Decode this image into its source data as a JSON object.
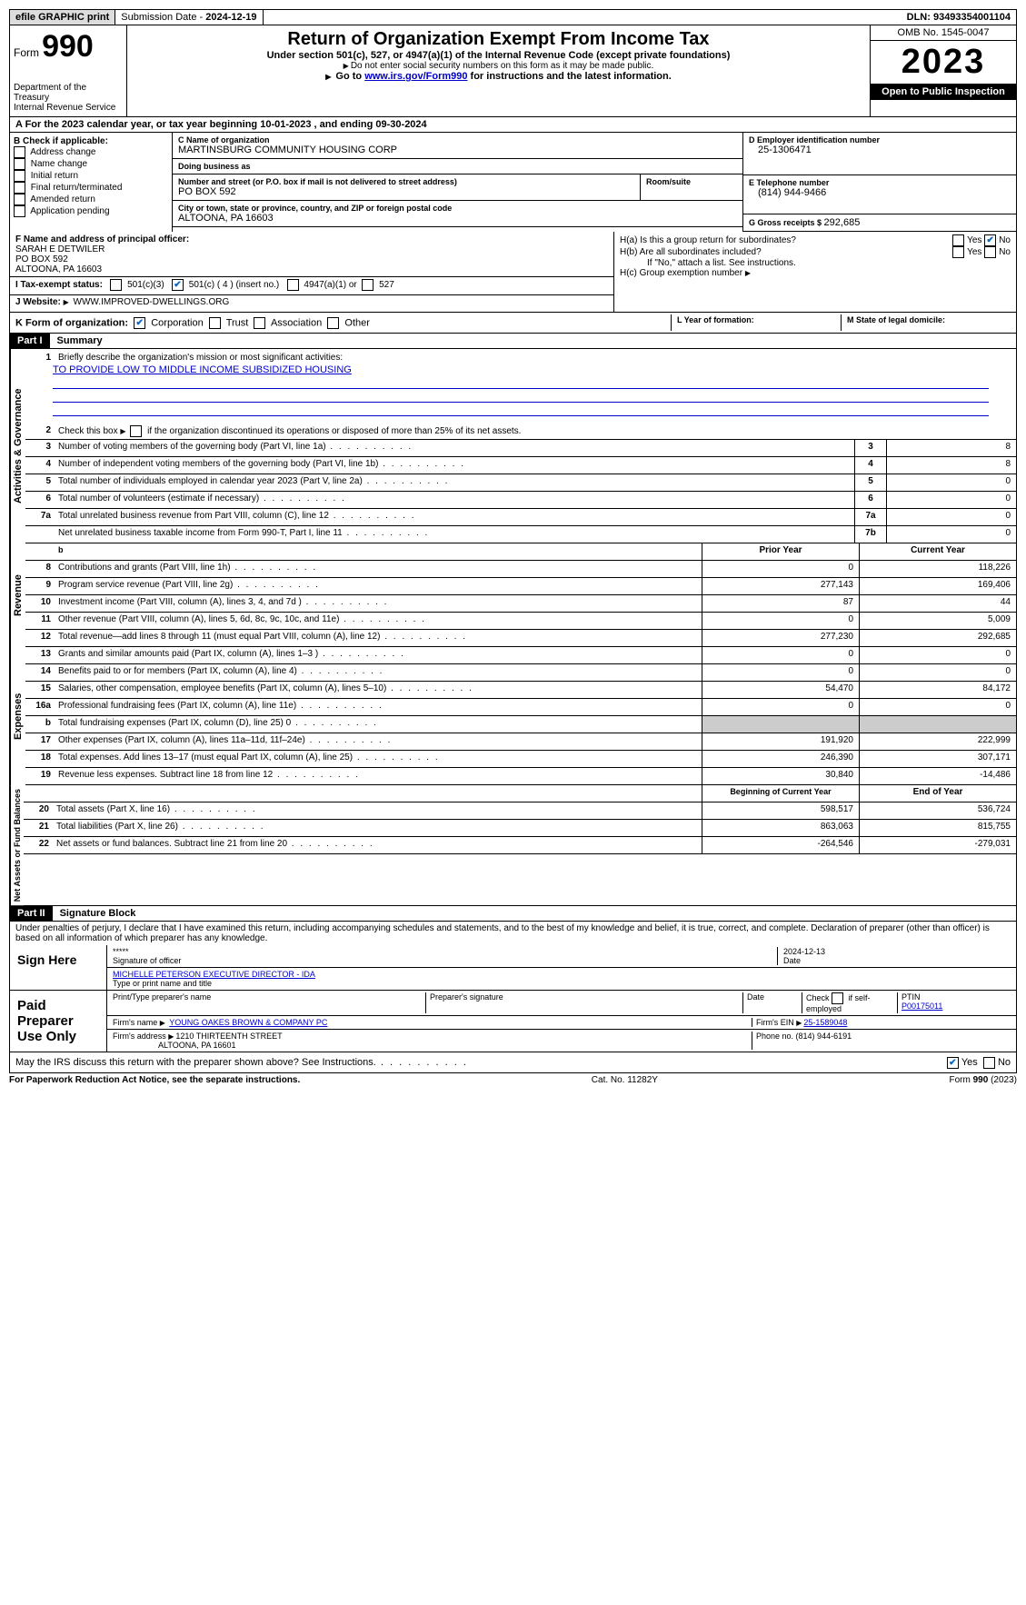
{
  "top": {
    "efile": "efile GRAPHIC print",
    "submission_label": "Submission Date - ",
    "submission_date": "2024-12-19",
    "dln_label": "DLN: ",
    "dln": "93493354001104"
  },
  "header": {
    "form_word": "Form",
    "form_no": "990",
    "dept": "Department of the Treasury\nInternal Revenue Service",
    "title": "Return of Organization Exempt From Income Tax",
    "sub1": "Under section 501(c), 527, or 4947(a)(1) of the Internal Revenue Code (except private foundations)",
    "sub2": "Do not enter social security numbers on this form as it may be made public.",
    "sub3_pre": "Go to ",
    "sub3_link": "www.irs.gov/Form990",
    "sub3_post": " for instructions and the latest information.",
    "omb": "OMB No. 1545-0047",
    "year": "2023",
    "open": "Open to Public Inspection"
  },
  "sectionA": {
    "text_pre": "A For the 2023 calendar year, or tax year beginning ",
    "begin": "10-01-2023",
    "mid": " , and ending ",
    "end": "09-30-2024"
  },
  "colB": {
    "label": "B Check if applicable:",
    "opts": [
      "Address change",
      "Name change",
      "Initial return",
      "Final return/terminated",
      "Amended return",
      "Application pending"
    ]
  },
  "colC": {
    "name_label": "C Name of organization",
    "name": "MARTINSBURG COMMUNITY HOUSING CORP",
    "dba_label": "Doing business as",
    "dba": "",
    "street_label": "Number and street (or P.O. box if mail is not delivered to street address)",
    "street": "PO BOX 592",
    "room_label": "Room/suite",
    "city_label": "City or town, state or province, country, and ZIP or foreign postal code",
    "city": "ALTOONA, PA  16603"
  },
  "colD": {
    "label": "D Employer identification number",
    "value": "25-1306471"
  },
  "colE": {
    "label": "E Telephone number",
    "value": "(814) 944-9466"
  },
  "colG": {
    "label": "G Gross receipts $ ",
    "value": "292,685"
  },
  "colF": {
    "label": "F  Name and address of principal officer:",
    "name": "SARAH E DETWILER",
    "street": "PO BOX 592",
    "city": "ALTOONA, PA  16603"
  },
  "colH": {
    "a_label": "H(a)  Is this a group return for subordinates?",
    "b_label": "H(b)  Are all subordinates included?",
    "b_note": "If \"No,\" attach a list. See instructions.",
    "c_label": "H(c)  Group exemption number ",
    "yes": "Yes",
    "no": "No"
  },
  "rowI": {
    "label": "I  Tax-exempt status:",
    "opt1": "501(c)(3)",
    "opt2": "501(c) ( 4 ) (insert no.)",
    "opt3": "4947(a)(1) or",
    "opt4": "527"
  },
  "rowJ": {
    "label": "J  Website: ",
    "value": "WWW.IMPROVED-DWELLINGS.ORG"
  },
  "rowK": {
    "label": "K Form of organization:",
    "opts": [
      "Corporation",
      "Trust",
      "Association",
      "Other"
    ],
    "l_label": "L Year of formation:",
    "l_value": "",
    "m_label": "M State of legal domicile:",
    "m_value": ""
  },
  "part1": {
    "header": "Part I",
    "title": "Summary"
  },
  "summary": {
    "l1": {
      "n": "1",
      "t": "Briefly describe the organization's mission or most significant activities:",
      "v": "TO PROVIDE LOW TO MIDDLE INCOME SUBSIDIZED HOUSING"
    },
    "l2": {
      "n": "2",
      "t": "Check this box      if the organization discontinued its operations or disposed of more than 25% of its net assets."
    },
    "gov_label": "Activities & Governance",
    "rev_label": "Revenue",
    "exp_label": "Expenses",
    "net_label": "Net Assets or Fund Balances",
    "rows_gov": [
      {
        "n": "3",
        "t": "Number of voting members of the governing body (Part VI, line 1a)",
        "box": "3",
        "v": "8"
      },
      {
        "n": "4",
        "t": "Number of independent voting members of the governing body (Part VI, line 1b)",
        "box": "4",
        "v": "8"
      },
      {
        "n": "5",
        "t": "Total number of individuals employed in calendar year 2023 (Part V, line 2a)",
        "box": "5",
        "v": "0"
      },
      {
        "n": "6",
        "t": "Total number of volunteers (estimate if necessary)",
        "box": "6",
        "v": "0"
      },
      {
        "n": "7a",
        "t": "Total unrelated business revenue from Part VIII, column (C), line 12",
        "box": "7a",
        "v": "0"
      },
      {
        "n": "",
        "t": "Net unrelated business taxable income from Form 990-T, Part I, line 11",
        "box": "7b",
        "v": "0"
      }
    ],
    "col_head1": "Prior Year",
    "col_head2": "Current Year",
    "rows_rev": [
      {
        "n": "8",
        "t": "Contributions and grants (Part VIII, line 1h)",
        "p": "0",
        "c": "118,226"
      },
      {
        "n": "9",
        "t": "Program service revenue (Part VIII, line 2g)",
        "p": "277,143",
        "c": "169,406"
      },
      {
        "n": "10",
        "t": "Investment income (Part VIII, column (A), lines 3, 4, and 7d )",
        "p": "87",
        "c": "44"
      },
      {
        "n": "11",
        "t": "Other revenue (Part VIII, column (A), lines 5, 6d, 8c, 9c, 10c, and 11e)",
        "p": "0",
        "c": "5,009"
      },
      {
        "n": "12",
        "t": "Total revenue—add lines 8 through 11 (must equal Part VIII, column (A), line 12)",
        "p": "277,230",
        "c": "292,685"
      }
    ],
    "rows_exp": [
      {
        "n": "13",
        "t": "Grants and similar amounts paid (Part IX, column (A), lines 1–3 )",
        "p": "0",
        "c": "0"
      },
      {
        "n": "14",
        "t": "Benefits paid to or for members (Part IX, column (A), line 4)",
        "p": "0",
        "c": "0"
      },
      {
        "n": "15",
        "t": "Salaries, other compensation, employee benefits (Part IX, column (A), lines 5–10)",
        "p": "54,470",
        "c": "84,172"
      },
      {
        "n": "16a",
        "t": "Professional fundraising fees (Part IX, column (A), line 11e)",
        "p": "0",
        "c": "0"
      },
      {
        "n": "b",
        "t": "Total fundraising expenses (Part IX, column (D), line 25) 0",
        "p": "",
        "c": "",
        "shaded": true
      },
      {
        "n": "17",
        "t": "Other expenses (Part IX, column (A), lines 11a–11d, 11f–24e)",
        "p": "191,920",
        "c": "222,999"
      },
      {
        "n": "18",
        "t": "Total expenses. Add lines 13–17 (must equal Part IX, column (A), line 25)",
        "p": "246,390",
        "c": "307,171"
      },
      {
        "n": "19",
        "t": "Revenue less expenses. Subtract line 18 from line 12",
        "p": "30,840",
        "c": "-14,486"
      }
    ],
    "net_head1": "Beginning of Current Year",
    "net_head2": "End of Year",
    "rows_net": [
      {
        "n": "20",
        "t": "Total assets (Part X, line 16)",
        "p": "598,517",
        "c": "536,724"
      },
      {
        "n": "21",
        "t": "Total liabilities (Part X, line 26)",
        "p": "863,063",
        "c": "815,755"
      },
      {
        "n": "22",
        "t": "Net assets or fund balances. Subtract line 21 from line 20",
        "p": "-264,546",
        "c": "-279,031"
      }
    ]
  },
  "part2": {
    "header": "Part II",
    "title": "Signature Block"
  },
  "penalties": "Under penalties of perjury, I declare that I have examined this return, including accompanying schedules and statements, and to the best of my knowledge and belief, it is true, correct, and complete. Declaration of preparer (other than officer) is based on all information of which preparer has any knowledge.",
  "sign": {
    "here": "Sign Here",
    "date": "2024-12-13",
    "sig_label": "Signature of officer",
    "date_label": "Date",
    "officer": "MICHELLE PETERSON  EXECUTIVE DIRECTOR - IDA",
    "name_label": "Type or print name and title"
  },
  "paid": {
    "label": "Paid Preparer Use Only",
    "h1": "Print/Type preparer's name",
    "h2": "Preparer's signature",
    "h3": "Date",
    "h4": "Check        if self-employed",
    "h5_label": "PTIN",
    "h5": "P00175011",
    "firm_label": "Firm's name   ",
    "firm": "YOUNG OAKES BROWN & COMPANY PC",
    "ein_label": "Firm's EIN  ",
    "ein": "25-1589048",
    "addr_label": "Firm's address ",
    "addr1": "1210 THIRTEENTH STREET",
    "addr2": "ALTOONA, PA  16601",
    "phone_label": "Phone no. ",
    "phone": "(814) 944-6191"
  },
  "discuss": {
    "text": "May the IRS discuss this return with the preparer shown above? See Instructions.",
    "yes": "Yes",
    "no": "No"
  },
  "footer": {
    "left": "For Paperwork Reduction Act Notice, see the separate instructions.",
    "mid": "Cat. No. 11282Y",
    "right": "Form 990 (2023)"
  }
}
